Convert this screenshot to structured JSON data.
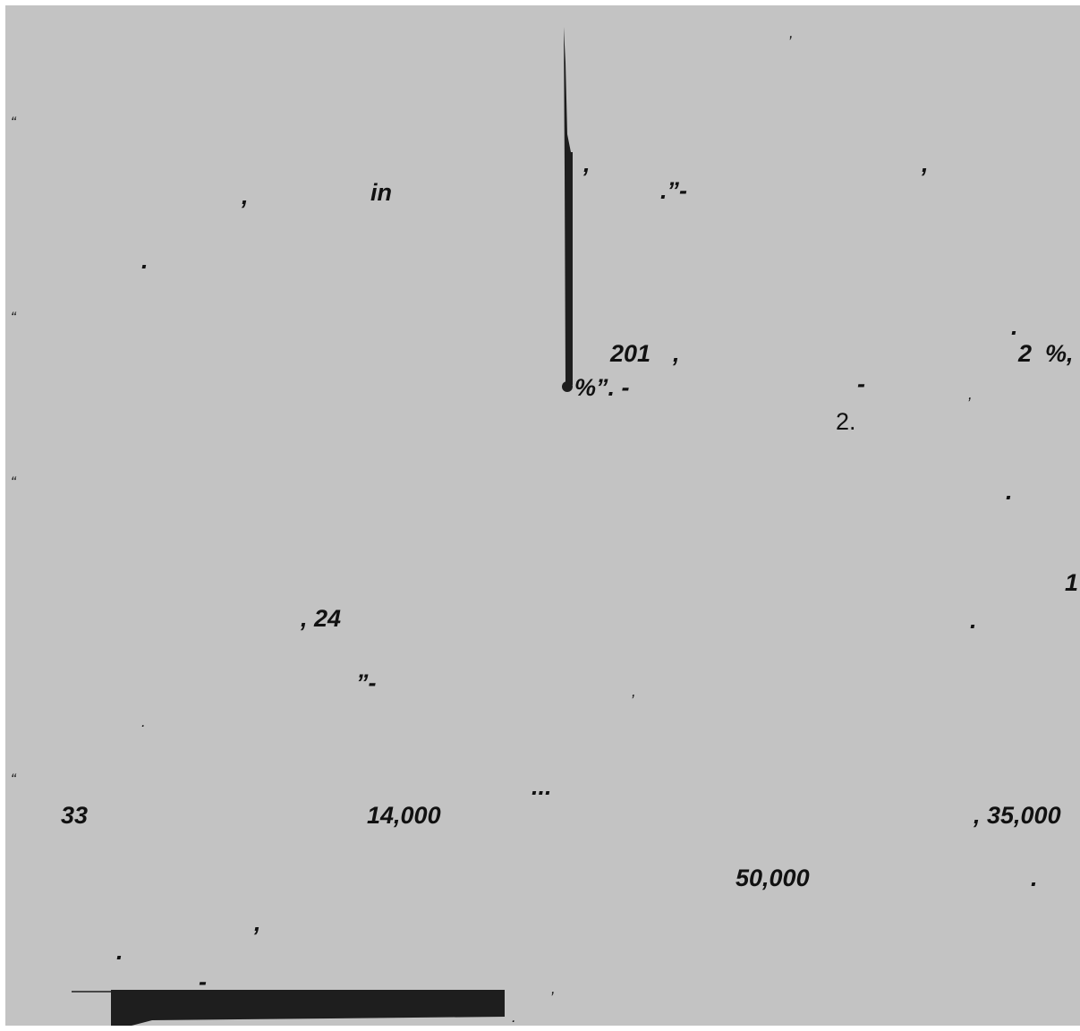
{
  "fragments": {
    "f01": ",",
    "f02": "“",
    "f03": ",",
    "f04": ",",
    "f05": ",",
    "f06": "in",
    "f07": ".”-",
    "f08": ".",
    "f09": "“",
    "f10": ".",
    "f11": "201",
    "f12": ",",
    "f13": "2",
    "f14": "%,",
    "f15": "%”. -",
    "f16": "-",
    "f17": ",",
    "f18": "2.",
    "f19": "“",
    "f20": ".",
    "f21": "1",
    "f22": ", 24",
    "f23": ".",
    "f24": "”-",
    "f25": ",",
    "f26": ".",
    "f27": "“",
    "f28": "...",
    "f29": "33",
    "f30": "14,000",
    "f31": ", 35,000",
    "f32": "50,000",
    "f33": ".",
    "f34": ",",
    "f35": ".",
    "f36": "-",
    "f37": ",",
    "f38": "."
  },
  "colors": {
    "background": "#c3c3c3",
    "ink": "#111111",
    "shape": "#1e1e1e"
  }
}
